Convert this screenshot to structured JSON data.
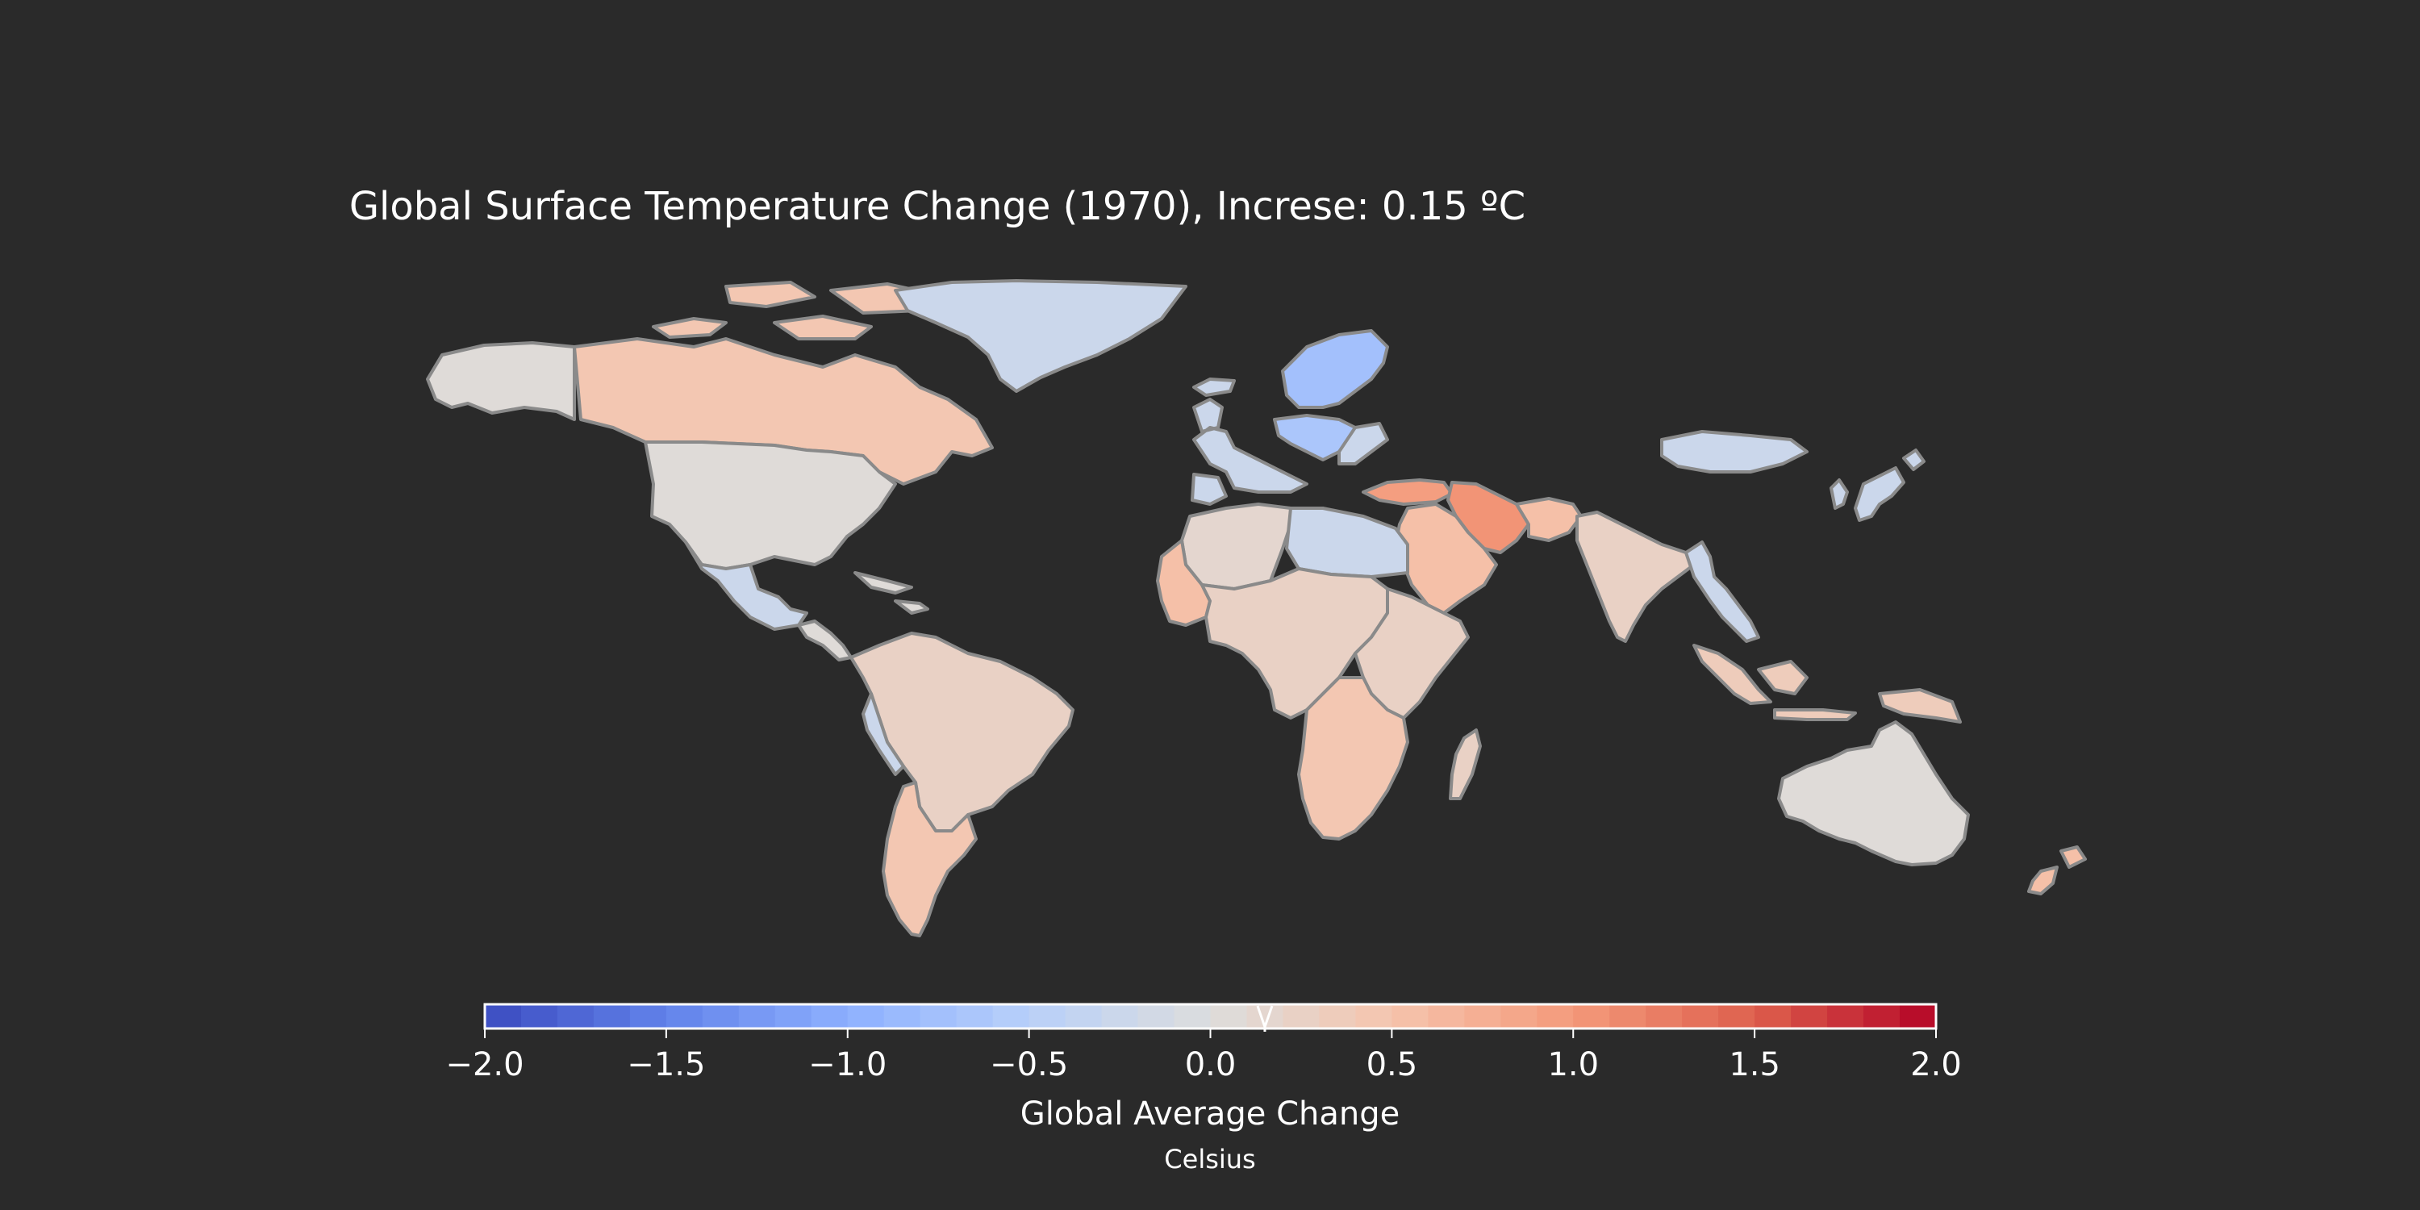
{
  "title": "Global Surface Temperature Change (1970), Increse: 0.15 ºC",
  "colorbar": {
    "label": "Global Average Change",
    "sublabel": "Celsius",
    "min": -2.0,
    "max": 2.0,
    "ticks": [
      -2.0,
      -1.5,
      -1.0,
      -0.5,
      0.0,
      0.5,
      1.0,
      1.5,
      2.0
    ],
    "tick_labels": [
      "−2.0",
      "−1.5",
      "−1.0",
      "−0.5",
      "0.0",
      "0.5",
      "1.0",
      "1.5",
      "2.0"
    ],
    "marker_value": 0.15,
    "colormap": "coolwarm",
    "bins": 40
  },
  "colors": {
    "background": "#2a2a2a",
    "border": "#8a8a8a",
    "text": "#ffffff"
  },
  "map": {
    "projection": "equirectangular",
    "regions": [
      {
        "name": "North America west",
        "value": 0.0
      },
      {
        "name": "Canada",
        "value": 0.4
      },
      {
        "name": "Greenland",
        "value": -0.3
      },
      {
        "name": "USA",
        "value": 0.0
      },
      {
        "name": "Mexico",
        "value": -0.3
      },
      {
        "name": "Central America",
        "value": 0.0
      },
      {
        "name": "South America north",
        "value": 0.2
      },
      {
        "name": "Andes west",
        "value": -0.3
      },
      {
        "name": "Argentina",
        "value": 0.4
      },
      {
        "name": "Western Europe",
        "value": -0.3
      },
      {
        "name": "Scandinavia",
        "value": -0.8
      },
      {
        "name": "Central Europe",
        "value": -0.7
      },
      {
        "name": "Eastern Europe",
        "value": -0.3
      },
      {
        "name": "Turkey Caucasus",
        "value": 0.9
      },
      {
        "name": "Iran",
        "value": 1.0
      },
      {
        "name": "Central Asia",
        "value": 0.5
      },
      {
        "name": "Middle East",
        "value": 0.5
      },
      {
        "name": "North Africa west",
        "value": 0.15
      },
      {
        "name": "Libya Egypt",
        "value": -0.3
      },
      {
        "name": "West Africa",
        "value": 0.5
      },
      {
        "name": "Central Africa",
        "value": 0.2
      },
      {
        "name": "East Africa",
        "value": 0.2
      },
      {
        "name": "Southern Africa",
        "value": 0.4
      },
      {
        "name": "India",
        "value": 0.2
      },
      {
        "name": "Southeast Asia",
        "value": -0.3
      },
      {
        "name": "Indonesia",
        "value": 0.3
      },
      {
        "name": "Mongolia",
        "value": -0.3
      },
      {
        "name": "Japan Korea",
        "value": -0.3
      },
      {
        "name": "Australia",
        "value": 0.0
      },
      {
        "name": "New Zealand",
        "value": 0.5
      },
      {
        "name": "Madagascar",
        "value": 0.2
      },
      {
        "name": "Iceland",
        "value": -0.3
      }
    ]
  }
}
